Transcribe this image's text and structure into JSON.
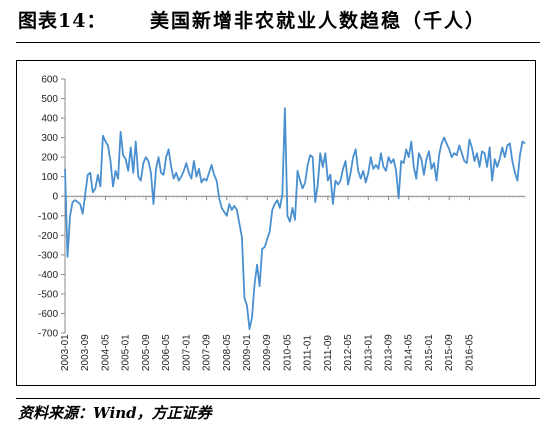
{
  "header": {
    "figure_label": "图表14：",
    "title": "美国新增非农就业人数趋稳（千人）"
  },
  "footer": {
    "source": "资料来源：Wind，方正证券"
  },
  "chart_data": {
    "type": "line",
    "title": "",
    "xlabel": "",
    "ylabel": "",
    "ylim": [
      -700,
      600
    ],
    "yticks": [
      -700,
      -600,
      -500,
      -400,
      -300,
      -200,
      -100,
      0,
      100,
      200,
      300,
      400,
      500,
      600
    ],
    "xticks": [
      "2003-01",
      "2003-09",
      "2004-05",
      "2005-01",
      "2005-09",
      "2006-05",
      "2007-01",
      "2007-09",
      "2008-05",
      "2009-01",
      "2009-09",
      "2010-05",
      "2011-01",
      "2011-09",
      "2012-05",
      "2013-01",
      "2013-09",
      "2014-05",
      "2015-01",
      "2015-09",
      "2016-05"
    ],
    "grid": false,
    "legend": "none",
    "line_color": "#4a8fcf",
    "series": [
      {
        "x_start": "2003-01",
        "values": [
          140,
          -310,
          -100,
          -30,
          -20,
          -30,
          -40,
          -90,
          10,
          110,
          120,
          20,
          40,
          110,
          50,
          310,
          280,
          260,
          180,
          50,
          130,
          90,
          330,
          210,
          190,
          130,
          250,
          120,
          280,
          100,
          80,
          170,
          200,
          180,
          120,
          -40,
          140,
          200,
          120,
          110,
          200,
          240,
          150,
          90,
          120,
          80,
          100,
          130,
          170,
          120,
          90,
          180,
          100,
          140,
          70,
          90,
          80,
          120,
          160,
          110,
          80,
          -10,
          -60,
          -80,
          -100,
          -40,
          -70,
          -50,
          -70,
          -140,
          -210,
          -520,
          -560,
          -680,
          -620,
          -450,
          -350,
          -460,
          -270,
          -260,
          -220,
          -180,
          -70,
          -40,
          -20,
          -60,
          10,
          450,
          -100,
          -130,
          -60,
          -120,
          130,
          80,
          40,
          70,
          160,
          210,
          200,
          -30,
          60,
          220,
          150,
          220,
          80,
          110,
          -40,
          80,
          60,
          80,
          140,
          180,
          60,
          120,
          200,
          240,
          130,
          90,
          130,
          70,
          120,
          200,
          140,
          160,
          140,
          220,
          150,
          130,
          200,
          170,
          190,
          130,
          -10,
          180,
          170,
          240,
          200,
          280,
          150,
          90,
          220,
          190,
          110,
          190,
          230,
          140,
          170,
          80,
          210,
          270,
          300,
          270,
          240,
          200,
          220,
          210,
          260,
          220,
          180,
          170,
          290,
          250,
          180,
          220,
          150,
          230,
          220,
          150,
          250,
          80,
          190,
          150,
          190,
          250,
          200,
          260,
          270,
          180,
          120,
          80,
          210,
          280,
          270
        ],
        "x_end": "2016-07"
      }
    ]
  }
}
